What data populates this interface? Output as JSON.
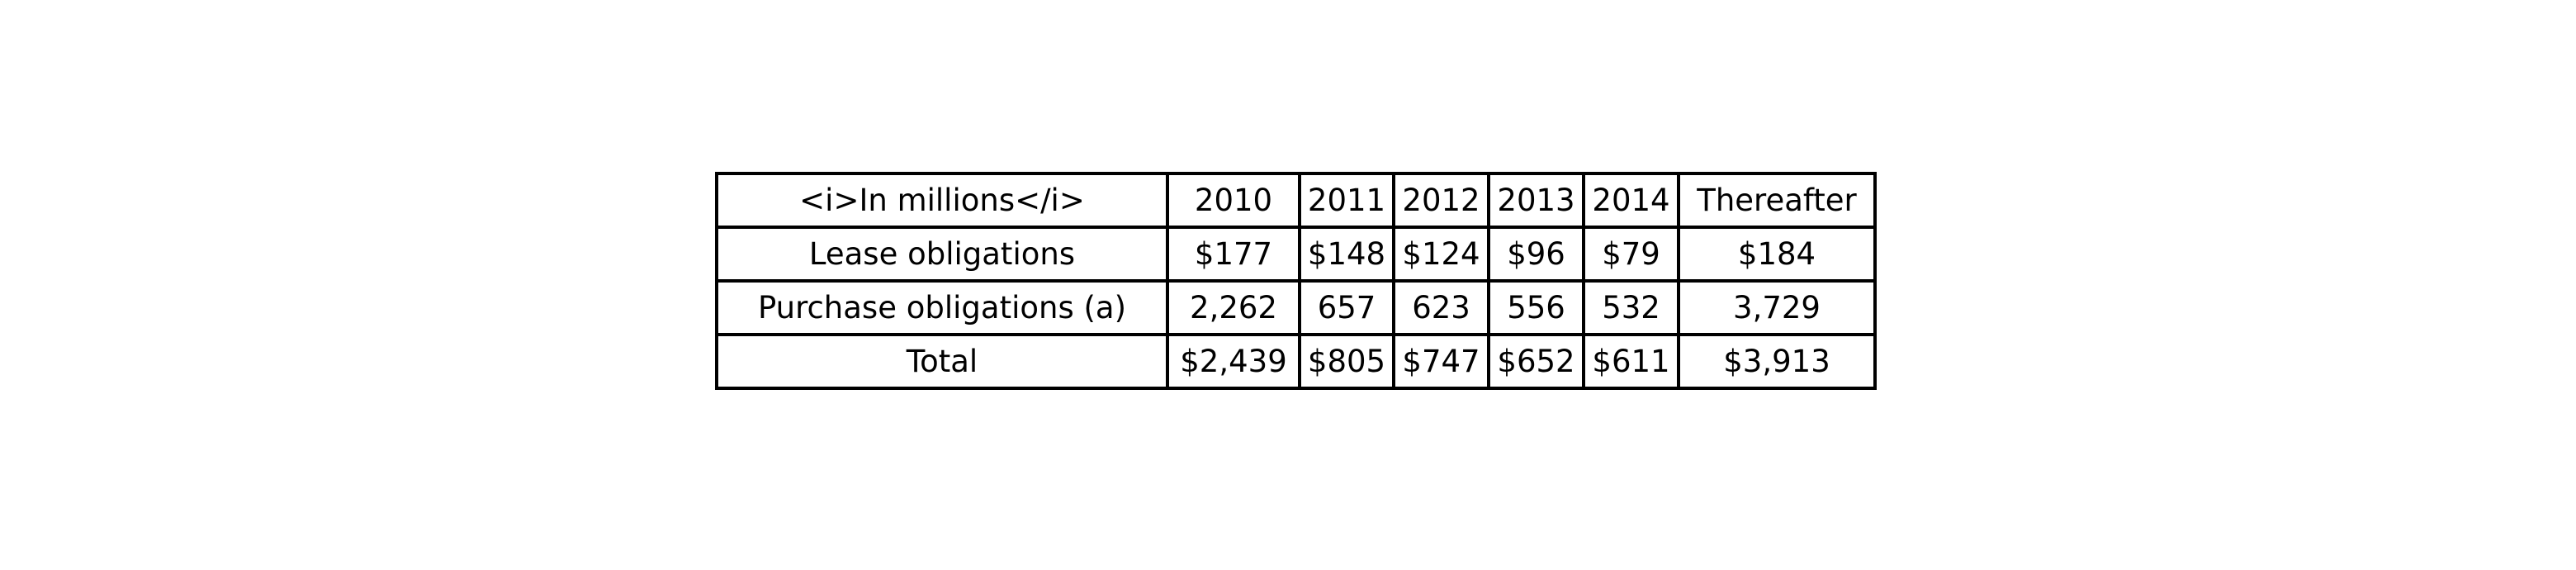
{
  "chart_data": {
    "type": "table",
    "columns": [
      "<i>In millions</i>",
      "2010",
      "2011",
      "2012",
      "2013",
      "2014",
      "Thereafter"
    ],
    "rows": [
      [
        "Lease obligations",
        "$177",
        "$148",
        "$124",
        "$96",
        "$79",
        "$184"
      ],
      [
        "Purchase obligations (a)",
        "2,262",
        "657",
        "623",
        "556",
        "532",
        "3,729"
      ],
      [
        "Total",
        "$2,439",
        "$805",
        "$747",
        "$652",
        "$611",
        "$3,913"
      ]
    ]
  }
}
